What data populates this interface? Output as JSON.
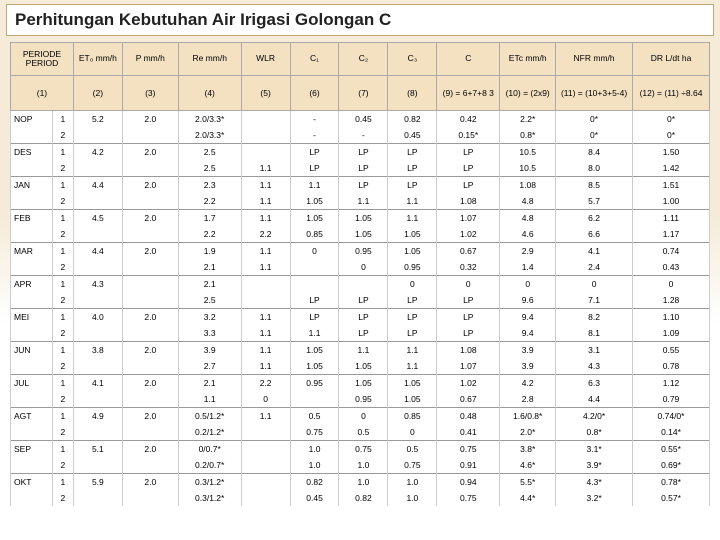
{
  "title": "Perhitungan Kebutuhan Air Irigasi Golongan C",
  "styling": {
    "background_color": "#f5ebd8",
    "header_bg": "#f3e1c2",
    "border_color": "#aaaaaa",
    "row_border": "#cccccc",
    "title_fontsize": 17,
    "title_weight": "bold",
    "body_fontsize": 8.5,
    "font_family": "Arial"
  },
  "headers": [
    {
      "label": "PERIODE\nPERIOD",
      "num": "(1)"
    },
    {
      "label": "ET₀\nmm/h",
      "num": "(2)"
    },
    {
      "label": "P mm/h",
      "num": "(3)"
    },
    {
      "label": "Re\nmm/h",
      "num": "(4)"
    },
    {
      "label": "WLR",
      "num": "(5)"
    },
    {
      "label": "C₁",
      "num": "(6)"
    },
    {
      "label": "C₂",
      "num": "(7)"
    },
    {
      "label": "C₃",
      "num": "(8)"
    },
    {
      "label": "C",
      "num": "(9) =\n6+7+8\n3"
    },
    {
      "label": "ETc\nmm/h",
      "num": "(10) =\n(2x9)"
    },
    {
      "label": "NFR mm/h",
      "num": "(11) =\n(10+3+5-4)"
    },
    {
      "label": "DR\nL/dt ha",
      "num": "(12) =\n(11)\n÷8.64"
    }
  ],
  "rows": [
    {
      "sep": true,
      "c": [
        "NOP",
        "1",
        "5.2",
        "2.0",
        "2.0/3.3*",
        "",
        "-",
        "0.45",
        "0.82",
        "0.42",
        "2.2*",
        "0*",
        "0*"
      ]
    },
    {
      "c": [
        "",
        "2",
        "",
        "",
        "2.0/3.3*",
        "",
        "-",
        "-",
        "0.45",
        "0.15*",
        "0.8*",
        "0*",
        "0*"
      ]
    },
    {
      "sep": true,
      "c": [
        "DES",
        "1",
        "4.2",
        "2.0",
        "2.5",
        "",
        "LP",
        "LP",
        "LP",
        "LP",
        "10.5",
        "8.4",
        "1.50"
      ]
    },
    {
      "c": [
        "",
        "2",
        "",
        "",
        "2.5",
        "1.1",
        "LP",
        "LP",
        "LP",
        "LP",
        "10.5",
        "8.0",
        "1.42"
      ]
    },
    {
      "sep": true,
      "c": [
        "JAN",
        "1",
        "4.4",
        "2.0",
        "2.3",
        "1.1",
        "1.1",
        "LP",
        "LP",
        "LP",
        "1.08",
        "8.5",
        "1.51"
      ]
    },
    {
      "c": [
        "",
        "2",
        "",
        "",
        "2.2",
        "1.1",
        "1.05",
        "1.1",
        "1.1",
        "1.08",
        "4.8",
        "5.7",
        "1.00"
      ]
    },
    {
      "sep": true,
      "c": [
        "FEB",
        "1",
        "4.5",
        "2.0",
        "1.7",
        "1.1",
        "1.05",
        "1.05",
        "1.1",
        "1.07",
        "4.8",
        "6.2",
        "1.11"
      ]
    },
    {
      "c": [
        "",
        "2",
        "",
        "",
        "2.2",
        "2.2",
        "0.85",
        "1.05",
        "1.05",
        "1.02",
        "4.6",
        "6.6",
        "1.17"
      ]
    },
    {
      "sep": true,
      "c": [
        "MAR",
        "1",
        "4.4",
        "2.0",
        "1.9",
        "1.1",
        "0",
        "0.95",
        "1.05",
        "0.67",
        "2.9",
        "4.1",
        "0.74"
      ]
    },
    {
      "c": [
        "",
        "2",
        "",
        "",
        "2.1",
        "1.1",
        "",
        "0",
        "0.95",
        "0.32",
        "1.4",
        "2.4",
        "0.43"
      ]
    },
    {
      "sep": true,
      "c": [
        "APR",
        "1",
        "4.3",
        "",
        "2.1",
        "",
        "",
        "",
        "0",
        "0",
        "0",
        "0",
        "0"
      ]
    },
    {
      "c": [
        "",
        "2",
        "",
        "",
        "2.5",
        "",
        "LP",
        "LP",
        "LP",
        "LP",
        "9.6",
        "7.1",
        "1.28"
      ]
    },
    {
      "sep": true,
      "c": [
        "MEI",
        "1",
        "4.0",
        "2.0",
        "3.2",
        "1.1",
        "LP",
        "LP",
        "LP",
        "LP",
        "9.4",
        "8.2",
        "1.10"
      ]
    },
    {
      "c": [
        "",
        "2",
        "",
        "",
        "3.3",
        "1.1",
        "1.1",
        "LP",
        "LP",
        "LP",
        "9.4",
        "8.1",
        "1.09"
      ]
    },
    {
      "sep": true,
      "c": [
        "JUN",
        "1",
        "3.8",
        "2.0",
        "3.9",
        "1.1",
        "1.05",
        "1.1",
        "1.1",
        "1.08",
        "3.9",
        "3.1",
        "0.55"
      ]
    },
    {
      "c": [
        "",
        "2",
        "",
        "",
        "2.7",
        "1.1",
        "1.05",
        "1.05",
        "1.1",
        "1.07",
        "3.9",
        "4.3",
        "0.78"
      ]
    },
    {
      "sep": true,
      "c": [
        "JUL",
        "1",
        "4.1",
        "2.0",
        "2.1",
        "2.2",
        "0.95",
        "1.05",
        "1.05",
        "1.02",
        "4.2",
        "6.3",
        "1.12"
      ]
    },
    {
      "c": [
        "",
        "2",
        "",
        "",
        "1.1",
        "0",
        "",
        "0.95",
        "1.05",
        "0.67",
        "2.8",
        "4.4",
        "0.79"
      ]
    },
    {
      "sep": true,
      "c": [
        "AGT",
        "1",
        "4.9",
        "2.0",
        "0.5/1.2*",
        "1.1",
        "0.5",
        "0",
        "0.85",
        "0.48",
        "1.6/0.8*",
        "4.2/0*",
        "0.74/0*"
      ]
    },
    {
      "c": [
        "",
        "2",
        "",
        "",
        "0.2/1.2*",
        "",
        "0.75",
        "0.5",
        "0",
        "0.41",
        "2.0*",
        "0.8*",
        "0.14*"
      ]
    },
    {
      "sep": true,
      "c": [
        "SEP",
        "1",
        "5.1",
        "2.0",
        "0/0.7*",
        "",
        "1.0",
        "0.75",
        "0.5",
        "0.75",
        "3.8*",
        "3.1*",
        "0.55*"
      ]
    },
    {
      "c": [
        "",
        "2",
        "",
        "",
        "0.2/0.7*",
        "",
        "1.0",
        "1.0",
        "0.75",
        "0.91",
        "4.6*",
        "3.9*",
        "0.69*"
      ]
    },
    {
      "sep": true,
      "c": [
        "OKT",
        "1",
        "5.9",
        "2.0",
        "0.3/1.2*",
        "",
        "0.82",
        "1.0",
        "1.0",
        "0.94",
        "5.5*",
        "4.3*",
        "0.78*"
      ]
    },
    {
      "c": [
        "",
        "2",
        "",
        "",
        "0.3/1.2*",
        "",
        "0.45",
        "0.82",
        "1.0",
        "0.75",
        "4.4*",
        "3.2*",
        "0.57*"
      ]
    }
  ]
}
